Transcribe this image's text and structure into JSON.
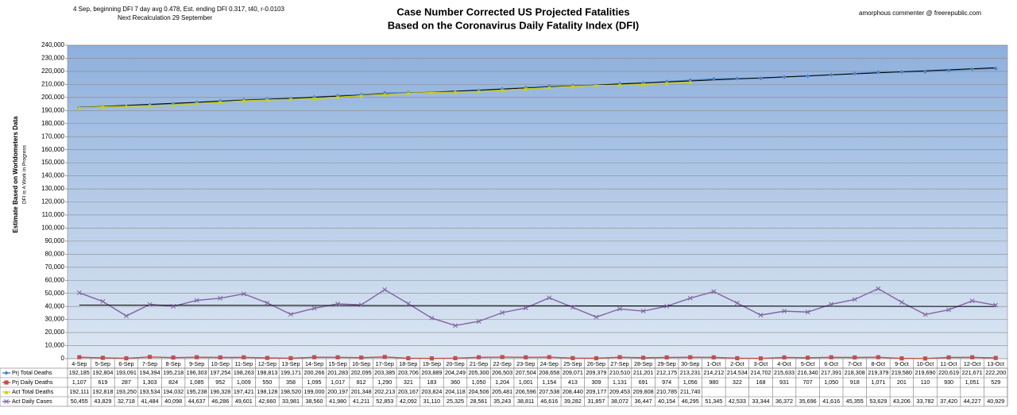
{
  "chart_data": {
    "type": "line",
    "title": [
      "Case Number Corrected US Projected Fatalities",
      "Based on the Coronavirus Daily Fatality Index (DFI)"
    ],
    "notes": [
      "4 Sep, beginning DFI  7 day avg 0.478, Est. ending DFI  0.317,  t40,  r-0.0103",
      "Next Recalculation  29 September"
    ],
    "credit": "amorphous commenter  @  freerepublic.com",
    "y_label": [
      "Estimate Based on Worldometers Data",
      "DFI is A Work in Progress"
    ],
    "categories": [
      "4-Sep",
      "5-Sep",
      "6-Sep",
      "7-Sep",
      "8-Sep",
      "9-Sep",
      "10-Sep",
      "11-Sep",
      "12-Sep",
      "13-Sep",
      "14-Sep",
      "15-Sep",
      "16-Sep",
      "17-Sep",
      "18-Sep",
      "19-Sep",
      "20-Sep",
      "21-Sep",
      "22-Sep",
      "23-Sep",
      "24-Sep",
      "25-Sep",
      "26-Sep",
      "27-Sep",
      "28-Sep",
      "29-Sep",
      "30-Sep",
      "1-Oct",
      "2-Oct",
      "3-Oct",
      "4-Oct",
      "5-Oct",
      "6-Oct",
      "7-Oct",
      "8-Oct",
      "9-Oct",
      "10-Oct",
      "11-Oct",
      "12-Oct",
      "13-Oct"
    ],
    "ylim": [
      0,
      240000
    ],
    "yticks": [
      {
        "value": 0,
        "label": "0"
      },
      {
        "value": 10000,
        "label": "10,000"
      },
      {
        "value": 20000,
        "label": "20,000"
      },
      {
        "value": 30000,
        "label": "30,000"
      },
      {
        "value": 40000,
        "label": "40,000"
      },
      {
        "value": 50000,
        "label": "50,000"
      },
      {
        "value": 60000,
        "label": "60,000"
      },
      {
        "value": 70000,
        "label": "70,000"
      },
      {
        "value": 80000,
        "label": "80,000"
      },
      {
        "value": 90000,
        "label": "90,000"
      },
      {
        "value": 100000,
        "label": "100,000"
      },
      {
        "value": 110000,
        "label": "110,000"
      },
      {
        "value": 120000,
        "label": "120,000"
      },
      {
        "value": 130000,
        "label": "130,000"
      },
      {
        "value": 140000,
        "label": "140,000"
      },
      {
        "value": 150000,
        "label": "150,000"
      },
      {
        "value": 160000,
        "label": "160,000"
      },
      {
        "value": 170000,
        "label": "170,000"
      },
      {
        "value": 180000,
        "label": "180,000"
      },
      {
        "value": 190000,
        "label": "190,000"
      },
      {
        "value": 200000,
        "label": "200,000"
      },
      {
        "value": 210000,
        "label": "210,000"
      },
      {
        "value": 220000,
        "label": "220,000"
      },
      {
        "value": 230000,
        "label": "230,000"
      },
      {
        "value": 240000,
        "label": "240,000"
      }
    ],
    "grid": true,
    "series": [
      {
        "name": "Prj Total Deaths",
        "color": "#4f81bd",
        "marker": "diamond",
        "trendline": true,
        "values": [
          192185,
          192804,
          193091,
          194394,
          195218,
          196303,
          197254,
          198263,
          198813,
          199171,
          200266,
          201283,
          202095,
          203385,
          203706,
          203889,
          204249,
          205300,
          206503,
          207504,
          208658,
          209071,
          209379,
          210510,
          211201,
          212175,
          213231,
          214212,
          214534,
          214702,
          215633,
          216340,
          217391,
          218308,
          219379,
          219580,
          219690,
          220619,
          221671,
          222200
        ],
        "value_labels": [
          "192,185",
          "192,804",
          "193,091",
          "194,394",
          "195,218",
          "196,303",
          "197,254",
          "198,263",
          "198,813",
          "199,171",
          "200,266",
          "201,283",
          "202,095",
          "203,385",
          "203,706",
          "203,889",
          "204,249",
          "205,300",
          "206,503",
          "207,504",
          "208,658",
          "209,071",
          "209,379",
          "210,510",
          "211,201",
          "212,175",
          "213,231",
          "214,212",
          "214,534",
          "214,702",
          "215,633",
          "216,340",
          "217,391",
          "218,308",
          "219,379",
          "219,580",
          "219,690",
          "220,619",
          "221,671",
          "222,200"
        ]
      },
      {
        "name": "Prj Daily Deaths",
        "color": "#c0504d",
        "marker": "square",
        "trendline": false,
        "values": [
          1107,
          619,
          287,
          1303,
          824,
          1085,
          952,
          1009,
          550,
          358,
          1095,
          1017,
          812,
          1290,
          321,
          183,
          360,
          1050,
          1204,
          1001,
          1154,
          413,
          309,
          1131,
          691,
          974,
          1056,
          980,
          322,
          168,
          931,
          707,
          1050,
          918,
          1071,
          201,
          110,
          930,
          1051,
          529
        ],
        "value_labels": [
          "1,107",
          "619",
          "287",
          "1,303",
          "824",
          "1,085",
          "952",
          "1,009",
          "550",
          "358",
          "1,095",
          "1,017",
          "812",
          "1,290",
          "321",
          "183",
          "360",
          "1,050",
          "1,204",
          "1,001",
          "1,154",
          "413",
          "309",
          "1,131",
          "691",
          "974",
          "1,056",
          "980",
          "322",
          "168",
          "931",
          "707",
          "1,050",
          "918",
          "1,071",
          "201",
          "110",
          "930",
          "1,051",
          "529"
        ]
      },
      {
        "name": "Act Total Deaths",
        "color": "#c9cf1e",
        "marker": "triangle",
        "trendline": false,
        "values": [
          192111,
          192818,
          193250,
          193534,
          194032,
          195238,
          196328,
          197421,
          198128,
          198520,
          199000,
          200197,
          201348,
          202213,
          203167,
          203824,
          204118,
          204506,
          205481,
          206596,
          207538,
          208440,
          209177,
          209453,
          209808,
          210785,
          211740,
          null,
          null,
          null,
          null,
          null,
          null,
          null,
          null,
          null,
          null,
          null,
          null,
          null
        ],
        "value_labels": [
          "192,111",
          "192,818",
          "193,250",
          "193,534",
          "194,032",
          "195,238",
          "196,328",
          "197,421",
          "198,128",
          "198,520",
          "199,000",
          "200,197",
          "201,348",
          "202,213",
          "203,167",
          "203,824",
          "204,118",
          "204,506",
          "205,481",
          "206,596",
          "207,538",
          "208,440",
          "209,177",
          "209,453",
          "209,808",
          "210,785",
          "211,740",
          null,
          null,
          null,
          null,
          null,
          null,
          null,
          null,
          null,
          null,
          null,
          null,
          null
        ]
      },
      {
        "name": "Act Daily Cases",
        "color": "#8064a2",
        "marker": "x",
        "trendline": true,
        "values": [
          50455,
          43829,
          32718,
          41484,
          40098,
          44637,
          46286,
          49601,
          42660,
          33981,
          38560,
          41980,
          41211,
          52853,
          42092,
          31110,
          25325,
          28561,
          35243,
          38811,
          46616,
          39282,
          31857,
          38072,
          36447,
          40154,
          46295,
          51345,
          42533,
          33344,
          36372,
          35696,
          41616,
          45355,
          53629,
          43206,
          33782,
          37420,
          44227,
          40929
        ],
        "value_labels": [
          "50,455",
          "43,829",
          "32,718",
          "41,484",
          "40,098",
          "44,637",
          "46,286",
          "49,601",
          "42,660",
          "33,981",
          "38,560",
          "41,980",
          "41,211",
          "52,853",
          "42,092",
          "31,110",
          "25,325",
          "28,561",
          "35,243",
          "38,811",
          "46,616",
          "39,282",
          "31,857",
          "38,072",
          "36,447",
          "40,154",
          "46,295",
          "51,345",
          "42,533",
          "33,344",
          "36,372",
          "35,696",
          "41,616",
          "45,355",
          "53,629",
          "43,206",
          "33,782",
          "37,420",
          "44,227",
          "40,929"
        ]
      }
    ]
  }
}
